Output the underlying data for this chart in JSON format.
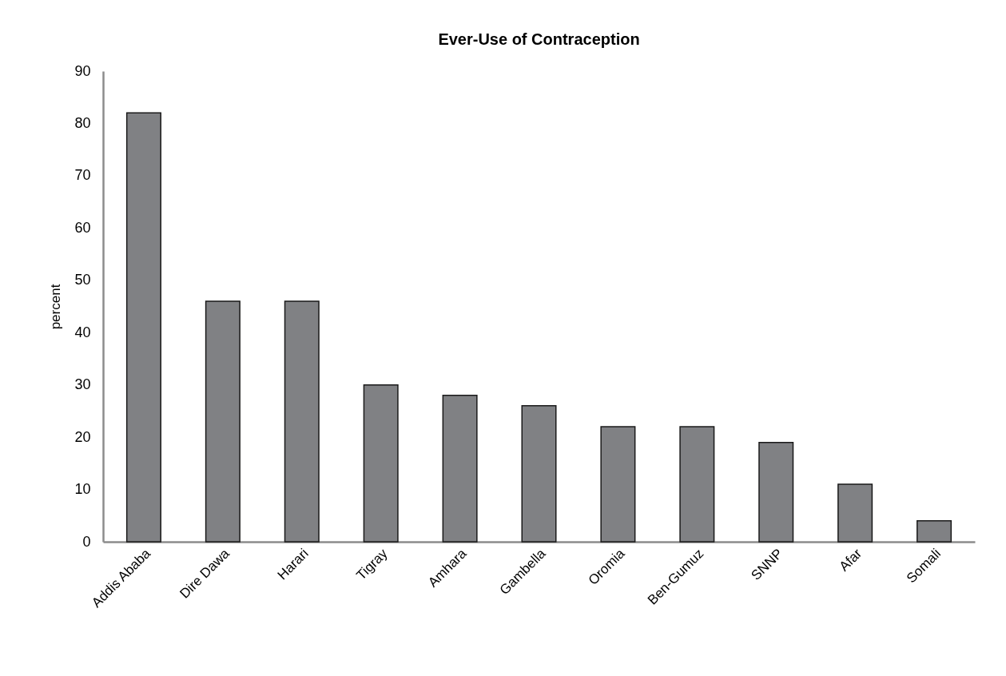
{
  "chart_data": {
    "type": "bar",
    "title": "Ever-Use of Contraception",
    "ylabel": "percent",
    "categories": [
      "Addis Ababa",
      "Dire Dawa",
      "Harari",
      "Tigray",
      "Amhara",
      "Gambella",
      "Oromia",
      "Ben-Gumuz",
      "SNNP",
      "Afar",
      "Somali"
    ],
    "values": [
      82,
      46,
      46,
      30,
      28,
      26,
      22,
      22,
      19,
      11,
      4
    ],
    "color": "#808184",
    "ylim": [
      0,
      90
    ],
    "yticks": [
      0,
      10,
      20,
      30,
      40,
      50,
      60,
      70,
      80,
      90
    ],
    "grid": false
  }
}
